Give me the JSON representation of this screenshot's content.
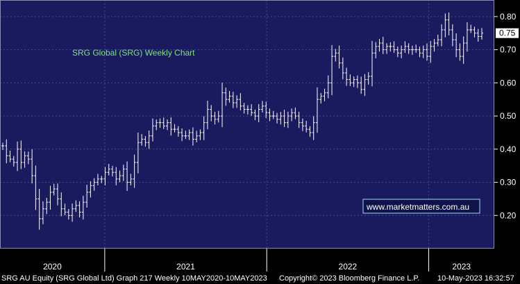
{
  "colors": {
    "plot_background": "#1a1b5e",
    "page_background": "#000000",
    "grid": "#4a4c8a",
    "price_bars": "#ffffff",
    "title_text": "#7fe08a",
    "last_price_badge": "#ffffff"
  },
  "chart_data": {
    "type": "ohlc",
    "title": "SRG Global (SRG) Weekly Chart",
    "xlabel": "",
    "ylabel": "",
    "x_tick_labels": [
      "2020",
      "2021",
      "2022",
      "2023"
    ],
    "y_tick_labels": [
      "0.20",
      "0.30",
      "0.40",
      "0.50",
      "0.60",
      "0.70",
      "0.80"
    ],
    "ylim": [
      0.1,
      0.85
    ],
    "y_axis_side": "right",
    "grid": true,
    "last_price_label": "0.75",
    "annotation": "www.marketmatters.com.au",
    "x_start": "2020-05-10",
    "x_end": "2023-05-10",
    "series": [
      {
        "values": [
          0.41,
          0.38,
          0.37,
          0.36,
          0.4,
          0.36,
          0.38,
          0.37,
          0.32,
          0.25,
          0.19,
          0.22,
          0.24,
          0.27,
          0.28,
          0.25,
          0.22,
          0.21,
          0.2,
          0.22,
          0.23,
          0.21,
          0.24,
          0.27,
          0.29,
          0.3,
          0.31,
          0.31,
          0.33,
          0.34,
          0.33,
          0.31,
          0.32,
          0.34,
          0.3,
          0.31,
          0.36,
          0.42,
          0.43,
          0.42,
          0.44,
          0.47,
          0.48,
          0.48,
          0.47,
          0.48,
          0.46,
          0.46,
          0.45,
          0.44,
          0.44,
          0.45,
          0.43,
          0.44,
          0.45,
          0.48,
          0.52,
          0.5,
          0.49,
          0.5,
          0.57,
          0.55,
          0.56,
          0.54,
          0.55,
          0.53,
          0.52,
          0.52,
          0.51,
          0.5,
          0.52,
          0.53,
          0.51,
          0.5,
          0.5,
          0.49,
          0.5,
          0.48,
          0.5,
          0.51,
          0.5,
          0.48,
          0.47,
          0.46,
          0.45,
          0.48,
          0.55,
          0.56,
          0.57,
          0.6,
          0.68,
          0.69,
          0.66,
          0.63,
          0.61,
          0.6,
          0.61,
          0.6,
          0.58,
          0.61,
          0.62,
          0.69,
          0.71,
          0.72,
          0.7,
          0.71,
          0.71,
          0.7,
          0.69,
          0.7,
          0.71,
          0.7,
          0.7,
          0.7,
          0.69,
          0.7,
          0.68,
          0.71,
          0.72,
          0.73,
          0.76,
          0.79,
          0.76,
          0.73,
          0.7,
          0.68,
          0.72,
          0.76,
          0.76,
          0.75,
          0.74,
          0.75
        ]
      }
    ]
  },
  "footer": {
    "left_text": "SRG AU Equity (SRG Global Ltd) Graph 217  Weekly 10MAY2020-10MAY2023",
    "center_text": "Copyright© 2023 Bloomberg Finance L.P.",
    "right_text": "10-May-2023 16:32:57"
  }
}
